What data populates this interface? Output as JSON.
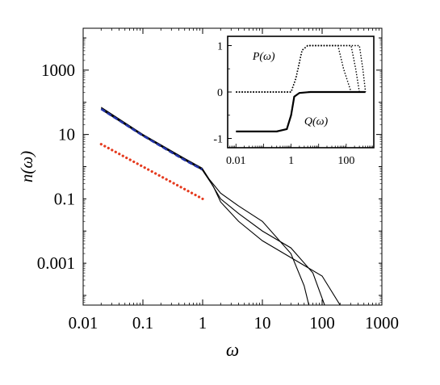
{
  "chart_data": [
    {
      "type": "line",
      "title": "",
      "xlabel": "ω",
      "ylabel": "n(ω)",
      "xscale": "log",
      "yscale": "log",
      "xlim": [
        0.01,
        1000
      ],
      "ylim": [
        5e-05,
        20000
      ],
      "xticks": [
        {
          "value": 0.01,
          "label": "0.01"
        },
        {
          "value": 0.1,
          "label": "0.1"
        },
        {
          "value": 1,
          "label": "1"
        },
        {
          "value": 10,
          "label": "10"
        },
        {
          "value": 100,
          "label": "100"
        },
        {
          "value": 1000,
          "label": "1000"
        }
      ],
      "yticks": [
        {
          "value": 1000,
          "label": "1000"
        },
        {
          "value": 10,
          "label": "10"
        },
        {
          "value": 0.1,
          "label": "0.1"
        },
        {
          "value": 0.001,
          "label": "0.001"
        }
      ],
      "grid": false,
      "series": [
        {
          "style": "solid",
          "color": "#000000",
          "x": [
            0.02,
            0.1,
            0.5,
            0.98,
            1.3,
            2,
            4,
            10,
            30,
            50,
            60,
            70
          ],
          "y": [
            70,
            10,
            1.8,
            0.9,
            0.4,
            0.15,
            0.06,
            0.02,
            0.002,
            0.0002,
            5e-05,
            2e-05
          ]
        },
        {
          "style": "solid",
          "color": "#000000",
          "x": [
            0.02,
            0.1,
            0.5,
            0.98,
            1.4,
            2,
            4,
            10,
            30,
            70,
            110,
            140
          ],
          "y": [
            65,
            9.5,
            1.7,
            0.85,
            0.3,
            0.1,
            0.035,
            0.01,
            0.003,
            0.0005,
            5e-05,
            2e-05
          ]
        },
        {
          "style": "solid",
          "color": "#000000",
          "x": [
            0.02,
            0.1,
            0.5,
            0.98,
            1.5,
            2,
            4,
            10,
            30,
            100,
            200,
            250
          ],
          "y": [
            60,
            9,
            1.6,
            0.8,
            0.25,
            0.08,
            0.02,
            0.005,
            0.0015,
            0.0004,
            5e-05,
            2e-05
          ]
        },
        {
          "style": "dashed",
          "color": "#2233aa",
          "x": [
            0.02,
            0.1,
            0.5,
            0.98
          ],
          "y": [
            62,
            9.2,
            1.6,
            0.82
          ]
        },
        {
          "style": "dotted",
          "color": "#e53a1e",
          "x": [
            0.02,
            0.1,
            0.5,
            1
          ],
          "y": [
            5,
            1,
            0.2,
            0.1
          ]
        }
      ]
    },
    {
      "type": "line",
      "title": "",
      "xscale": "log",
      "xlim": [
        0.005,
        1000
      ],
      "ylim": [
        -1.2,
        1.2
      ],
      "xticks": [
        {
          "value": 0.01,
          "label": "0.01"
        },
        {
          "value": 1,
          "label": "1"
        },
        {
          "value": 100,
          "label": "100"
        }
      ],
      "yticks": [
        {
          "value": 1,
          "label": "1"
        },
        {
          "value": 0,
          "label": "0"
        },
        {
          "value": -1,
          "label": "-1"
        }
      ],
      "annotations": [
        {
          "text": "P(ω)",
          "x": 0.04,
          "y": 0.7
        },
        {
          "text": "Q(ω)",
          "x": 3,
          "y": -0.7
        }
      ],
      "series": [
        {
          "name": "P(ω)",
          "style": "dotted",
          "color": "#000000",
          "x": [
            0.01,
            1,
            1.5,
            2.5,
            4,
            50,
            80,
            150
          ],
          "y": [
            0,
            0,
            0.3,
            0.9,
            1,
            1,
            0.5,
            0
          ]
        },
        {
          "name": "P(ω)",
          "style": "dotted",
          "color": "#000000",
          "x": [
            0.01,
            1,
            1.5,
            2.5,
            4,
            150,
            220,
            300
          ],
          "y": [
            0,
            0,
            0.3,
            0.9,
            1,
            1,
            0.5,
            0
          ]
        },
        {
          "name": "P(ω)",
          "style": "dotted",
          "color": "#000000",
          "x": [
            0.01,
            1,
            1.5,
            2.5,
            4,
            300,
            400,
            500
          ],
          "y": [
            0,
            0,
            0.3,
            0.9,
            1,
            1,
            0.5,
            0
          ]
        },
        {
          "name": "Q(ω)",
          "style": "solid",
          "color": "#000000",
          "x": [
            0.01,
            0.3,
            0.7,
            1,
            1.3,
            2,
            5,
            500
          ],
          "y": [
            -0.85,
            -0.85,
            -0.8,
            -0.5,
            -0.1,
            -0.02,
            0,
            0
          ]
        }
      ]
    }
  ]
}
